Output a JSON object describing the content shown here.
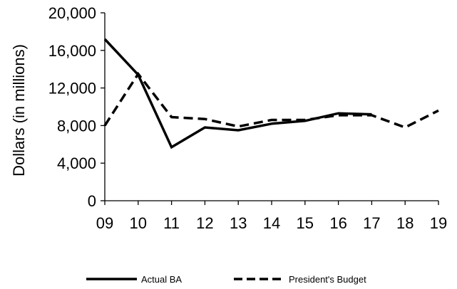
{
  "chart_data": {
    "type": "line",
    "categories": [
      "09",
      "10",
      "11",
      "12",
      "13",
      "14",
      "15",
      "16",
      "17",
      "18",
      "19"
    ],
    "series": [
      {
        "name": "Actual BA",
        "values": [
          17200,
          13400,
          5700,
          7800,
          7500,
          8200,
          8500,
          9300,
          9200,
          null,
          null
        ],
        "style": "solid",
        "color": "#000000"
      },
      {
        "name": "President's Budget",
        "values": [
          8000,
          13500,
          8900,
          8700,
          7900,
          8600,
          8600,
          9100,
          9100,
          7800,
          9600
        ],
        "style": "dashed",
        "color": "#000000"
      }
    ],
    "ylabel": "Dollars  (in millions)",
    "xlabel": "",
    "ylim": [
      0,
      20000
    ],
    "yticks": [
      "0",
      "4,000",
      "8,000",
      "12,000",
      "16,000",
      "20,000"
    ],
    "ytick_values": [
      0,
      4000,
      8000,
      12000,
      16000,
      20000
    ],
    "grid": false,
    "legend_position": "bottom"
  }
}
